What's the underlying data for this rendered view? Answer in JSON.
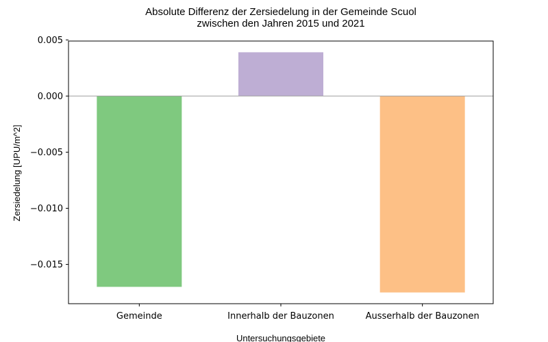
{
  "chart_data": {
    "type": "bar",
    "title_line1": "Absolute Differenz der Zersiedelung in der Gemeinde Scuol",
    "title_line2": "zwischen den Jahren 2015 und 2021",
    "xlabel": "Untersuchungsgebiete",
    "ylabel": "Zersiedelung [UPU/m^2]",
    "categories": [
      "Gemeinde",
      "Innerhalb der Bauzonen",
      "Ausserhalb der Bauzonen"
    ],
    "values": [
      -0.017,
      0.0039,
      -0.0175
    ],
    "colors": [
      "#7fc97f",
      "#beaed4",
      "#fdc086"
    ],
    "yticks": [
      0.005,
      0.0,
      -0.005,
      -0.01,
      -0.015
    ],
    "ytick_labels": [
      "0.005",
      "0.000",
      "−0.005",
      "−0.010",
      "−0.015"
    ],
    "ylim": [
      -0.0185,
      0.0049
    ],
    "grid": false,
    "zero_line": true
  }
}
